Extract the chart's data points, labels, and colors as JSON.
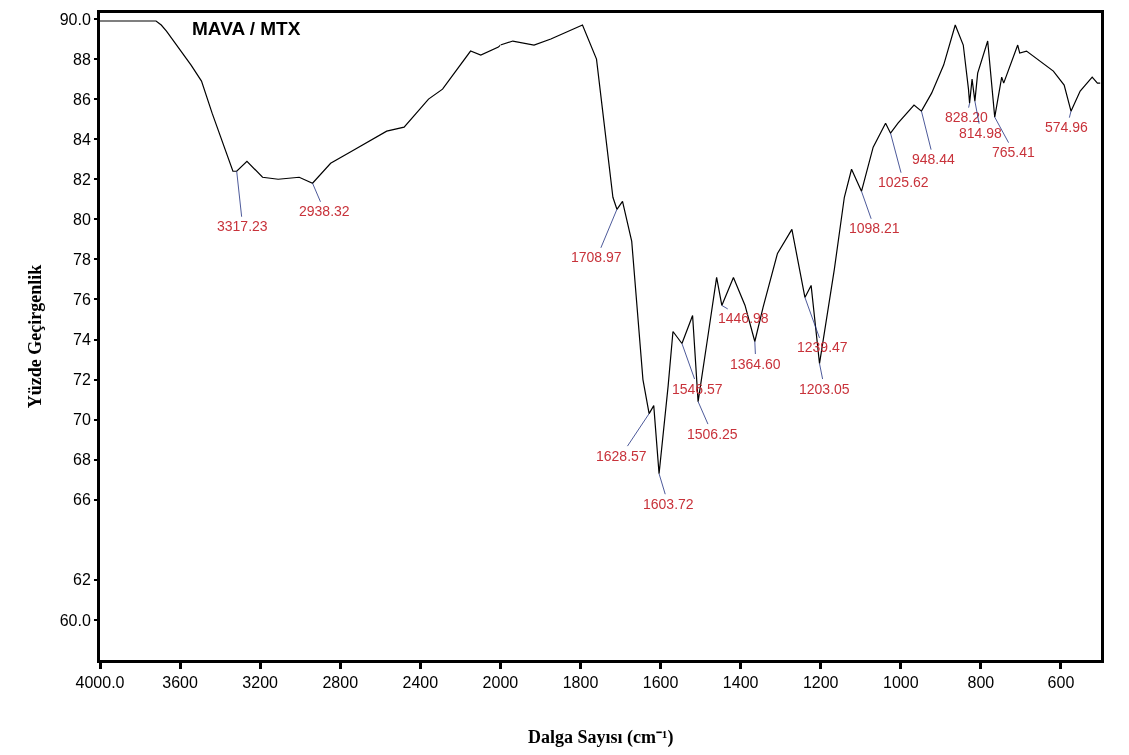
{
  "chart_data": [
    {
      "type": "line",
      "title": "MAVA / MTX",
      "xlabel": "Dalga Sayısı (cm⁻¹)",
      "ylabel": "Yüzde Geçirgenlik",
      "x": [
        4000,
        3800,
        3720,
        3694,
        3668,
        3545,
        3493,
        3440,
        3336,
        3317.23,
        3266,
        3188,
        3110,
        3005,
        2938.32,
        2848,
        2743,
        2568,
        2481,
        2359,
        2289,
        2149,
        2098,
        2010,
        2000
      ],
      "values": [
        89.9,
        89.9,
        89.9,
        89.7,
        89.4,
        87.7,
        86.9,
        85.3,
        82.4,
        82.4,
        82.9,
        82.1,
        82.0,
        82.1,
        81.8,
        82.8,
        83.4,
        84.4,
        84.6,
        86.0,
        86.5,
        88.4,
        88.2,
        88.6,
        88.7
      ],
      "color": "#000000",
      "xlim": [
        4000,
        2000
      ],
      "xticks": [
        {
          "value": 4000,
          "label": "4000.0"
        },
        3600,
        3200,
        2800,
        2400,
        2000
      ],
      "ylim": [
        58,
        90.3
      ],
      "yticks": [
        {
          "value": 60,
          "label": "60.0"
        },
        62,
        66,
        68,
        70,
        72,
        74,
        76,
        78,
        80,
        82,
        84,
        86,
        88,
        {
          "value": 90,
          "label": "90.0"
        }
      ],
      "annotations": [
        {
          "text": "3317.23",
          "x": 3317.23,
          "y": 82.4
        },
        {
          "text": "2938.32",
          "x": 2938.32,
          "y": 81.8
        }
      ],
      "marker": "none",
      "line_style": "solid"
    },
    {
      "type": "line",
      "x": [
        2000,
        1969,
        1916,
        1874,
        1795,
        1760,
        1741,
        1719,
        1708.97,
        1695,
        1672,
        1644,
        1628.57,
        1617,
        1603.72,
        1581,
        1569,
        1546.57,
        1520,
        1506.25,
        1480,
        1460,
        1446.98,
        1418,
        1389,
        1364.6,
        1344,
        1308,
        1272,
        1239.47,
        1224,
        1203.05,
        1166,
        1141,
        1123,
        1098.21,
        1069,
        1038,
        1025.62,
        1007,
        967,
        948.44,
        923,
        893,
        864,
        844,
        831,
        828.2,
        822,
        814.98,
        808,
        783,
        765.41,
        748,
        743,
        708,
        703,
        686,
        619,
        592,
        574.96,
        552,
        522,
        509,
        502
      ],
      "values": [
        88.7,
        88.9,
        88.7,
        89.0,
        89.7,
        88.0,
        84.8,
        81.1,
        80.5,
        80.9,
        78.9,
        72.0,
        70.3,
        70.7,
        67.3,
        71.7,
        74.4,
        73.8,
        75.2,
        70.9,
        74.4,
        77.1,
        75.7,
        77.1,
        75.7,
        73.9,
        75.6,
        78.3,
        79.5,
        76.1,
        76.7,
        72.8,
        77.5,
        81.1,
        82.5,
        81.4,
        83.6,
        84.8,
        84.3,
        84.8,
        85.7,
        85.4,
        86.3,
        87.7,
        89.7,
        88.7,
        86.5,
        85.8,
        87.0,
        85.9,
        87.3,
        88.9,
        85.1,
        87.1,
        86.8,
        88.7,
        88.3,
        88.4,
        87.4,
        86.7,
        85.4,
        86.4,
        87.1,
        86.8,
        86.8
      ],
      "color": "#000000",
      "xlim": [
        2000,
        500
      ],
      "xticks": [
        1800,
        1600,
        1400,
        1200,
        1000,
        800,
        600
      ],
      "ylim": [
        58,
        90.3
      ],
      "tick_labels": "x",
      "annotations": [
        {
          "text": "1708.97",
          "x": 1708.97,
          "y": 80.5
        },
        {
          "text": "1628.57",
          "x": 1628.57,
          "y": 70.3
        },
        {
          "text": "1603.72",
          "x": 1603.72,
          "y": 67.3
        },
        {
          "text": "1546.57",
          "x": 1546.57,
          "y": 73.8
        },
        {
          "text": "1506.25",
          "x": 1506.25,
          "y": 70.9
        },
        {
          "text": "1446.98",
          "x": 1446.98,
          "y": 75.7
        },
        {
          "text": "1364.60",
          "x": 1364.6,
          "y": 73.9
        },
        {
          "text": "1239.47",
          "x": 1239.47,
          "y": 76.1
        },
        {
          "text": "1203.05",
          "x": 1203.05,
          "y": 72.8
        },
        {
          "text": "1098.21",
          "x": 1098.21,
          "y": 81.4
        },
        {
          "text": "1025.62",
          "x": 1025.62,
          "y": 84.3
        },
        {
          "text": "948.44",
          "x": 948.44,
          "y": 85.4
        },
        {
          "text": "828.20",
          "x": 828.2,
          "y": 85.8
        },
        {
          "text": "814.98",
          "x": 814.98,
          "y": 85.9
        },
        {
          "text": "765.41",
          "x": 765.41,
          "y": 85.1
        },
        {
          "text": "574.96",
          "x": 574.96,
          "y": 85.4
        }
      ],
      "marker": "none",
      "line_style": "solid"
    }
  ]
}
